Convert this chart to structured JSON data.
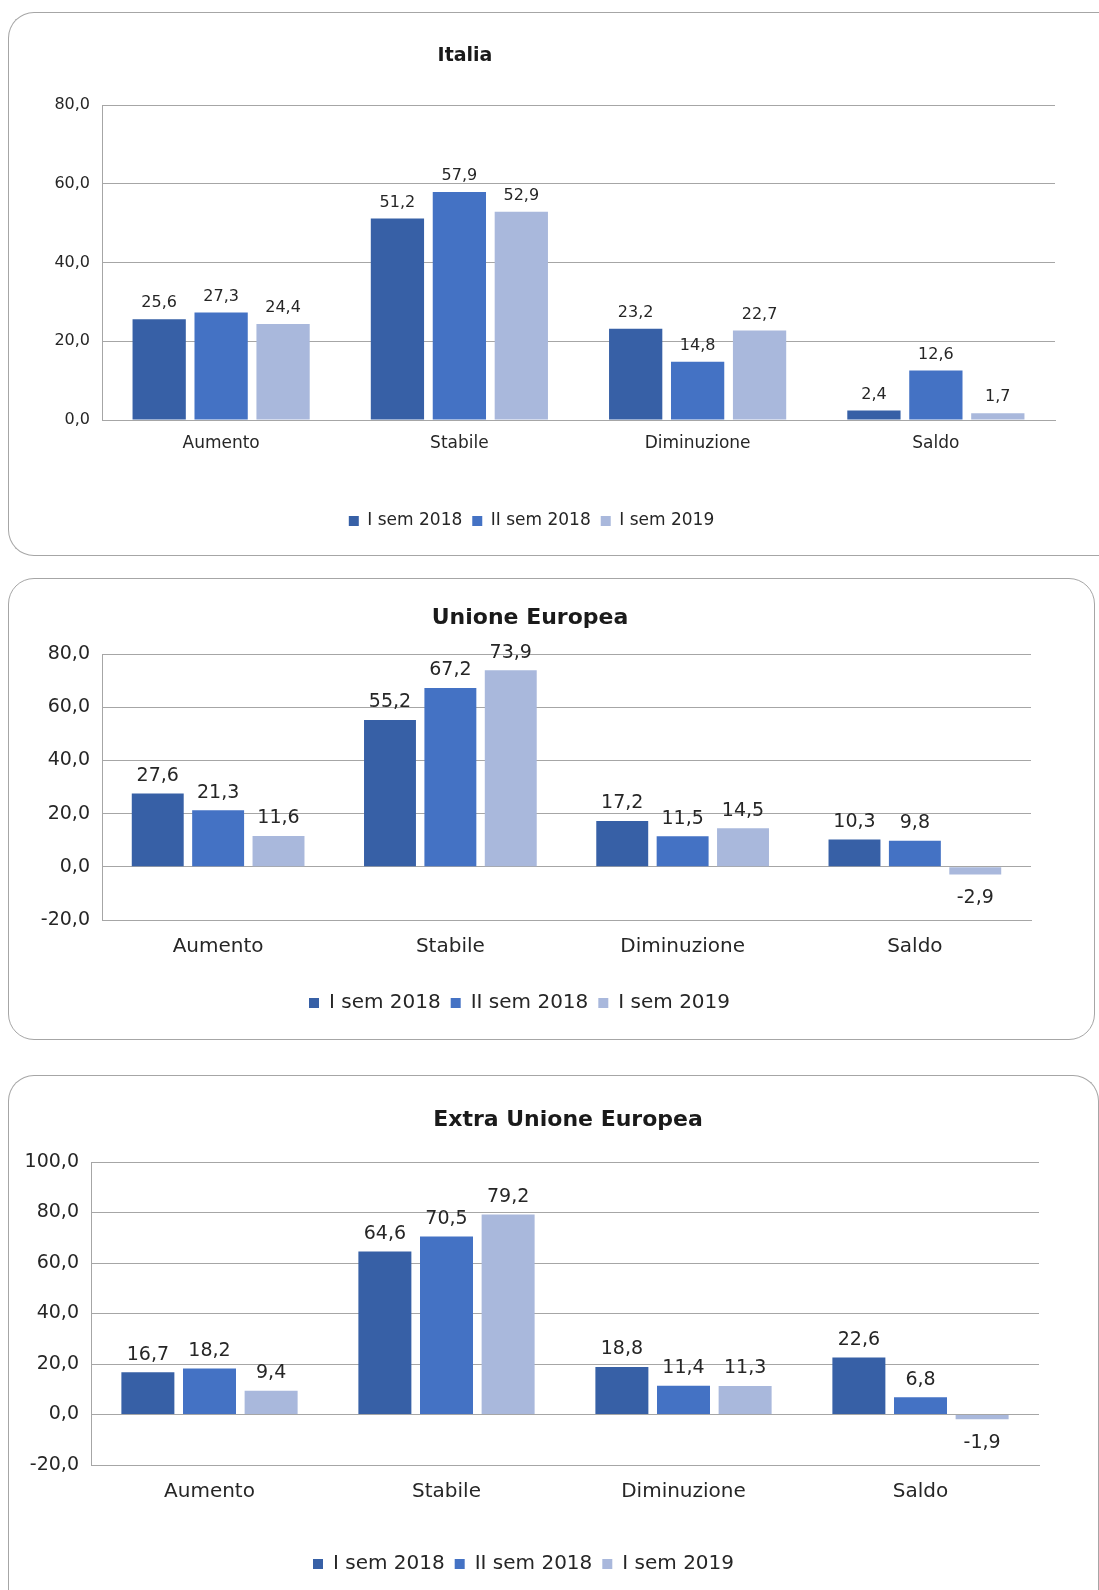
{
  "chart_data": [
    {
      "type": "bar",
      "title": "Italia",
      "categories": [
        "Aumento",
        "Stabile",
        "Diminuzione",
        "Saldo"
      ],
      "series": [
        {
          "name": "I sem 2018",
          "color": "#3760a6",
          "values": [
            25.6,
            51.2,
            23.2,
            2.4
          ],
          "value_labels": [
            "25,6",
            "51,2",
            "23,2",
            "2,4"
          ]
        },
        {
          "name": "II sem 2018",
          "color": "#4472c4",
          "values": [
            27.3,
            57.9,
            14.8,
            12.6
          ],
          "value_labels": [
            "27,3",
            "57,9",
            "14,8",
            "12,6"
          ]
        },
        {
          "name": "I sem 2019",
          "color": "#a9b8dc",
          "values": [
            24.4,
            52.9,
            22.7,
            1.7
          ],
          "value_labels": [
            "24,4",
            "52,9",
            "22,7",
            "1,7"
          ]
        }
      ],
      "ylim": [
        0,
        80
      ],
      "yticks": [
        {
          "value": 0,
          "label": "0,0"
        },
        {
          "value": 20,
          "label": "20,0"
        },
        {
          "value": 40,
          "label": "40,0"
        },
        {
          "value": 60,
          "label": "60,0"
        },
        {
          "value": 80,
          "label": "80,0"
        }
      ],
      "grid": "y",
      "legend": "bottom"
    },
    {
      "type": "bar",
      "title": "Unione Europea",
      "categories": [
        "Aumento",
        "Stabile",
        "Diminuzione",
        "Saldo"
      ],
      "series": [
        {
          "name": "I sem 2018",
          "color": "#3760a6",
          "values": [
            27.6,
            55.2,
            17.2,
            10.3
          ],
          "value_labels": [
            "27,6",
            "55,2",
            "17,2",
            "10,3"
          ]
        },
        {
          "name": "II sem 2018",
          "color": "#4472c4",
          "values": [
            21.3,
            67.2,
            11.5,
            9.8
          ],
          "value_labels": [
            "21,3",
            "67,2",
            "11,5",
            "9,8"
          ]
        },
        {
          "name": "I sem 2019",
          "color": "#a9b8dc",
          "values": [
            11.6,
            73.9,
            14.5,
            -2.9
          ],
          "value_labels": [
            "11,6",
            "73,9",
            "14,5",
            "-2,9"
          ]
        }
      ],
      "ylim": [
        -20,
        80
      ],
      "yticks": [
        {
          "value": -20,
          "label": "-20,0"
        },
        {
          "value": 0,
          "label": "0,0"
        },
        {
          "value": 20,
          "label": "20,0"
        },
        {
          "value": 40,
          "label": "40,0"
        },
        {
          "value": 60,
          "label": "60,0"
        },
        {
          "value": 80,
          "label": "80,0"
        }
      ],
      "grid": "y",
      "legend": "bottom"
    },
    {
      "type": "bar",
      "title": "Extra Unione Europea",
      "categories": [
        "Aumento",
        "Stabile",
        "Diminuzione",
        "Saldo"
      ],
      "series": [
        {
          "name": "I sem 2018",
          "color": "#3760a6",
          "values": [
            16.7,
            64.6,
            18.8,
            22.6
          ],
          "value_labels": [
            "16,7",
            "64,6",
            "18,8",
            "22,6"
          ]
        },
        {
          "name": "II sem 2018",
          "color": "#4472c4",
          "values": [
            18.2,
            70.5,
            11.4,
            6.8
          ],
          "value_labels": [
            "18,2",
            "70,5",
            "11,4",
            "6,8"
          ]
        },
        {
          "name": "I sem 2019",
          "color": "#a9b8dc",
          "values": [
            9.4,
            79.2,
            11.3,
            -1.9
          ],
          "value_labels": [
            "9,4",
            "79,2",
            "11,3",
            "-1,9"
          ]
        }
      ],
      "ylim": [
        -20,
        100
      ],
      "yticks": [
        {
          "value": -20,
          "label": "-20,0"
        },
        {
          "value": 0,
          "label": "0,0"
        },
        {
          "value": 20,
          "label": "20,0"
        },
        {
          "value": 40,
          "label": "40,0"
        },
        {
          "value": 60,
          "label": "60,0"
        },
        {
          "value": 80,
          "label": "80,0"
        },
        {
          "value": 100,
          "label": "100,0"
        }
      ],
      "grid": "y",
      "legend": "bottom"
    }
  ]
}
